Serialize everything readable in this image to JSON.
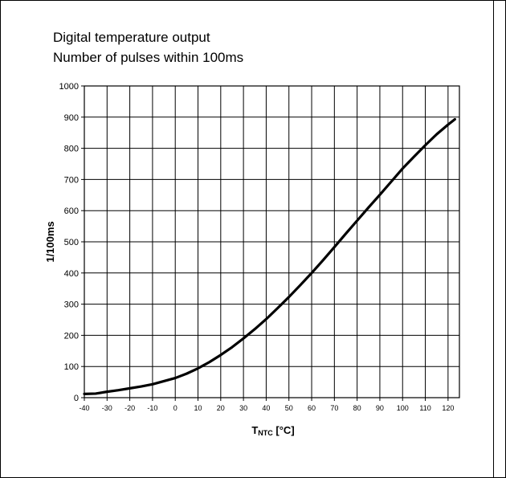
{
  "chart_data": {
    "type": "line",
    "title": "Digital temperature output",
    "subtitle": "Number of pulses within 100ms",
    "xlabel": {
      "main": "T",
      "sub": "NTC",
      "unit": " [°C]"
    },
    "ylabel": "1/100ms",
    "xlim": [
      -40,
      125
    ],
    "ylim": [
      0,
      1000
    ],
    "x_ticks": [
      -40,
      -30,
      -20,
      -10,
      0,
      10,
      20,
      30,
      40,
      50,
      60,
      70,
      80,
      90,
      100,
      110,
      120
    ],
    "y_ticks": [
      0,
      100,
      200,
      300,
      400,
      500,
      600,
      700,
      800,
      900,
      1000
    ],
    "x_tick_labels": [
      "-40",
      "-30",
      "-20",
      "-10",
      "0",
      "10",
      "20",
      "30",
      "40",
      "50",
      "60",
      "70",
      "80",
      "90",
      "100",
      "110",
      "120"
    ],
    "y_tick_labels": [
      "0",
      "100",
      "200",
      "300",
      "400",
      "500",
      "600",
      "700",
      "800",
      "900",
      "1000"
    ],
    "grid": true,
    "legend": "none",
    "series": [
      {
        "color": "#000000",
        "x": [
          -40,
          -35,
          -30,
          -25,
          -20,
          -15,
          -10,
          -5,
          0,
          5,
          10,
          15,
          20,
          25,
          30,
          35,
          40,
          45,
          50,
          55,
          60,
          65,
          70,
          75,
          80,
          85,
          90,
          95,
          100,
          105,
          110,
          115,
          120,
          123
        ],
        "y": [
          12,
          13,
          19,
          24,
          30,
          36,
          43,
          53,
          63,
          77,
          94,
          114,
          137,
          162,
          190,
          220,
          252,
          287,
          323,
          361,
          400,
          441,
          483,
          526,
          568,
          610,
          651,
          693,
          735,
          773,
          810,
          845,
          876,
          893
        ]
      }
    ]
  }
}
